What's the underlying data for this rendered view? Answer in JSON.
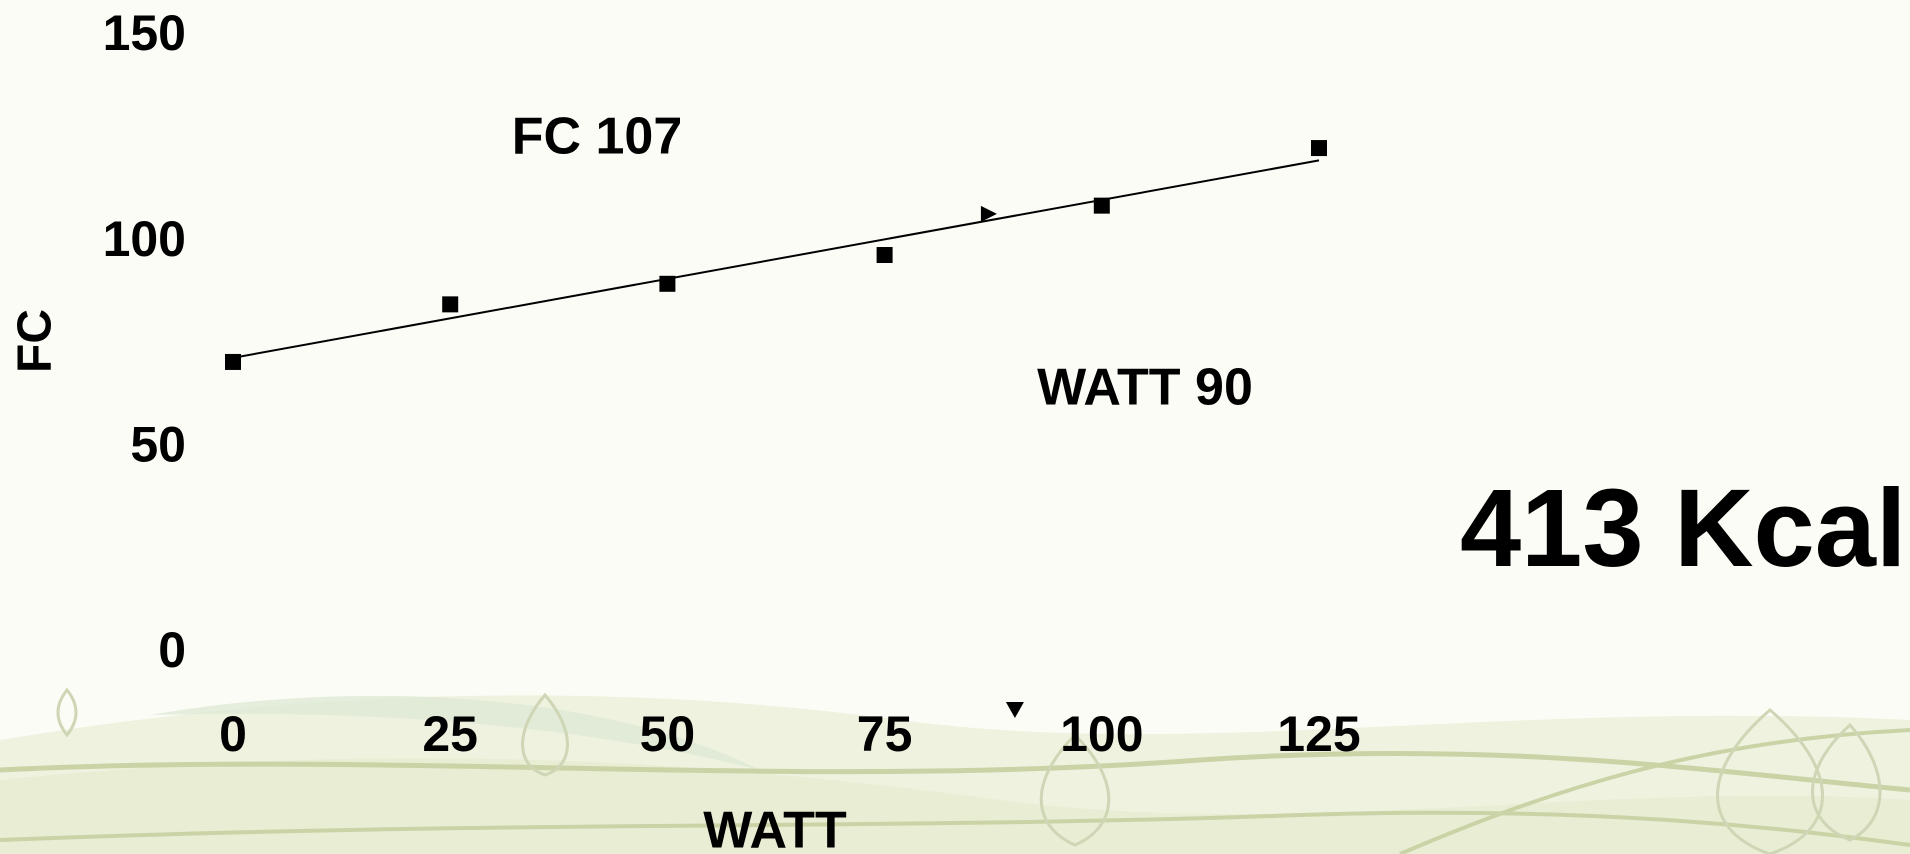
{
  "chart_data": {
    "type": "scatter",
    "x": [
      0,
      25,
      50,
      75,
      100,
      125
    ],
    "values": [
      71,
      85,
      90,
      97,
      109,
      123
    ],
    "color": "#000000",
    "trendline": {
      "x": [
        0,
        125
      ],
      "values": [
        72,
        120
      ]
    },
    "markers": {
      "fc": 107,
      "watt": 90
    },
    "xlim": [
      0,
      125
    ],
    "xticks": [
      0,
      25,
      50,
      75,
      100,
      125
    ],
    "ylim": [
      0,
      150
    ],
    "yticks": [
      0,
      50,
      100,
      150
    ],
    "x_label": "WATT",
    "y_label": "FC",
    "annotations": [
      "FC 107",
      "WATT 90",
      "413 Kcal"
    ]
  }
}
